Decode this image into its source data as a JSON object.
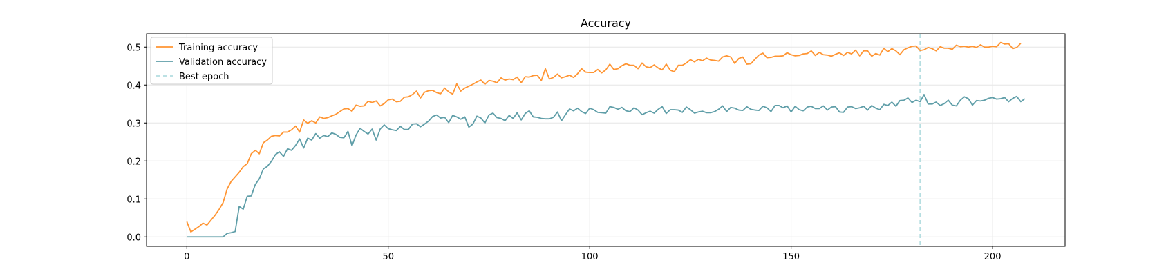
{
  "chart_data": {
    "type": "line",
    "title": "Accuracy",
    "xlabel": "",
    "ylabel": "",
    "xlim": [
      -10,
      218
    ],
    "ylim": [
      -0.025,
      0.535
    ],
    "x_ticks": [
      0,
      50,
      100,
      150,
      200
    ],
    "y_ticks": [
      0.0,
      0.1,
      0.2,
      0.3,
      0.4,
      0.5
    ],
    "y_tick_labels": [
      "0.0",
      "0.1",
      "0.2",
      "0.3",
      "0.4",
      "0.5"
    ],
    "grid": true,
    "legend_position": "top-left",
    "series": [
      {
        "name": "Training accuracy",
        "color": "#ff9533",
        "x_start": 0,
        "values": [
          0.04,
          0.013,
          0.02,
          0.027,
          0.036,
          0.031,
          0.044,
          0.057,
          0.072,
          0.09,
          0.126,
          0.146,
          0.158,
          0.17,
          0.185,
          0.193,
          0.219,
          0.228,
          0.219,
          0.248,
          0.255,
          0.265,
          0.267,
          0.266,
          0.276,
          0.276,
          0.282,
          0.292,
          0.276,
          0.308,
          0.299,
          0.306,
          0.3,
          0.316,
          0.312,
          0.314,
          0.319,
          0.323,
          0.33,
          0.337,
          0.338,
          0.331,
          0.347,
          0.344,
          0.345,
          0.357,
          0.354,
          0.358,
          0.345,
          0.351,
          0.361,
          0.363,
          0.356,
          0.357,
          0.368,
          0.369,
          0.375,
          0.384,
          0.366,
          0.381,
          0.385,
          0.386,
          0.38,
          0.377,
          0.392,
          0.382,
          0.376,
          0.403,
          0.384,
          0.392,
          0.397,
          0.402,
          0.408,
          0.413,
          0.402,
          0.412,
          0.41,
          0.406,
          0.419,
          0.413,
          0.416,
          0.414,
          0.421,
          0.406,
          0.422,
          0.421,
          0.425,
          0.426,
          0.412,
          0.443,
          0.416,
          0.42,
          0.429,
          0.419,
          0.422,
          0.426,
          0.42,
          0.43,
          0.443,
          0.434,
          0.433,
          0.433,
          0.441,
          0.432,
          0.44,
          0.455,
          0.441,
          0.443,
          0.451,
          0.456,
          0.452,
          0.452,
          0.443,
          0.458,
          0.448,
          0.446,
          0.453,
          0.445,
          0.44,
          0.455,
          0.439,
          0.435,
          0.452,
          0.452,
          0.458,
          0.467,
          0.461,
          0.468,
          0.464,
          0.471,
          0.466,
          0.465,
          0.463,
          0.474,
          0.477,
          0.474,
          0.457,
          0.47,
          0.474,
          0.455,
          0.456,
          0.468,
          0.479,
          0.484,
          0.472,
          0.473,
          0.476,
          0.476,
          0.477,
          0.485,
          0.48,
          0.477,
          0.478,
          0.482,
          0.483,
          0.49,
          0.478,
          0.486,
          0.48,
          0.479,
          0.476,
          0.481,
          0.485,
          0.478,
          0.486,
          0.482,
          0.492,
          0.477,
          0.49,
          0.49,
          0.476,
          0.483,
          0.479,
          0.497,
          0.488,
          0.496,
          0.49,
          0.48,
          0.493,
          0.498,
          0.502,
          0.503,
          0.491,
          0.493,
          0.499,
          0.496,
          0.49,
          0.501,
          0.497,
          0.497,
          0.494,
          0.505,
          0.501,
          0.502,
          0.5,
          0.502,
          0.499,
          0.506,
          0.5,
          0.5,
          0.502,
          0.501,
          0.512,
          0.508,
          0.509,
          0.496,
          0.499,
          0.51
        ]
      },
      {
        "name": "Validation accuracy",
        "color": "#5f9ea8",
        "x_start": 0,
        "values": [
          0.0,
          0.0,
          0.0,
          0.0,
          0.0,
          0.0,
          0.0,
          0.0,
          0.0,
          0.0,
          0.009,
          0.011,
          0.014,
          0.08,
          0.073,
          0.107,
          0.108,
          0.138,
          0.153,
          0.179,
          0.186,
          0.199,
          0.217,
          0.224,
          0.212,
          0.232,
          0.228,
          0.241,
          0.258,
          0.234,
          0.26,
          0.255,
          0.272,
          0.26,
          0.267,
          0.264,
          0.274,
          0.27,
          0.262,
          0.261,
          0.278,
          0.24,
          0.268,
          0.286,
          0.278,
          0.271,
          0.284,
          0.255,
          0.284,
          0.295,
          0.285,
          0.282,
          0.28,
          0.291,
          0.283,
          0.283,
          0.297,
          0.298,
          0.29,
          0.297,
          0.305,
          0.317,
          0.321,
          0.313,
          0.315,
          0.301,
          0.32,
          0.316,
          0.31,
          0.316,
          0.289,
          0.297,
          0.318,
          0.313,
          0.3,
          0.321,
          0.326,
          0.314,
          0.312,
          0.306,
          0.32,
          0.312,
          0.327,
          0.308,
          0.325,
          0.332,
          0.316,
          0.315,
          0.312,
          0.311,
          0.311,
          0.315,
          0.329,
          0.306,
          0.322,
          0.337,
          0.332,
          0.339,
          0.33,
          0.325,
          0.339,
          0.335,
          0.328,
          0.327,
          0.326,
          0.343,
          0.341,
          0.336,
          0.341,
          0.332,
          0.33,
          0.34,
          0.334,
          0.322,
          0.327,
          0.331,
          0.326,
          0.336,
          0.343,
          0.325,
          0.335,
          0.335,
          0.334,
          0.328,
          0.342,
          0.335,
          0.326,
          0.329,
          0.331,
          0.327,
          0.327,
          0.33,
          0.336,
          0.345,
          0.33,
          0.341,
          0.339,
          0.334,
          0.333,
          0.343,
          0.336,
          0.334,
          0.333,
          0.344,
          0.34,
          0.33,
          0.346,
          0.346,
          0.34,
          0.345,
          0.329,
          0.344,
          0.335,
          0.332,
          0.342,
          0.344,
          0.338,
          0.338,
          0.345,
          0.334,
          0.342,
          0.343,
          0.329,
          0.328,
          0.342,
          0.343,
          0.338,
          0.34,
          0.344,
          0.334,
          0.346,
          0.339,
          0.335,
          0.349,
          0.346,
          0.355,
          0.344,
          0.359,
          0.36,
          0.366,
          0.354,
          0.36,
          0.356,
          0.375,
          0.35,
          0.35,
          0.355,
          0.346,
          0.351,
          0.36,
          0.347,
          0.345,
          0.36,
          0.369,
          0.364,
          0.347,
          0.359,
          0.358,
          0.36,
          0.365,
          0.367,
          0.363,
          0.364,
          0.367,
          0.356,
          0.365,
          0.37,
          0.356,
          0.364
        ]
      },
      {
        "name": "Best epoch",
        "color": "#b3dde0",
        "style": "dashed",
        "vertical_line_x": 182
      }
    ]
  }
}
